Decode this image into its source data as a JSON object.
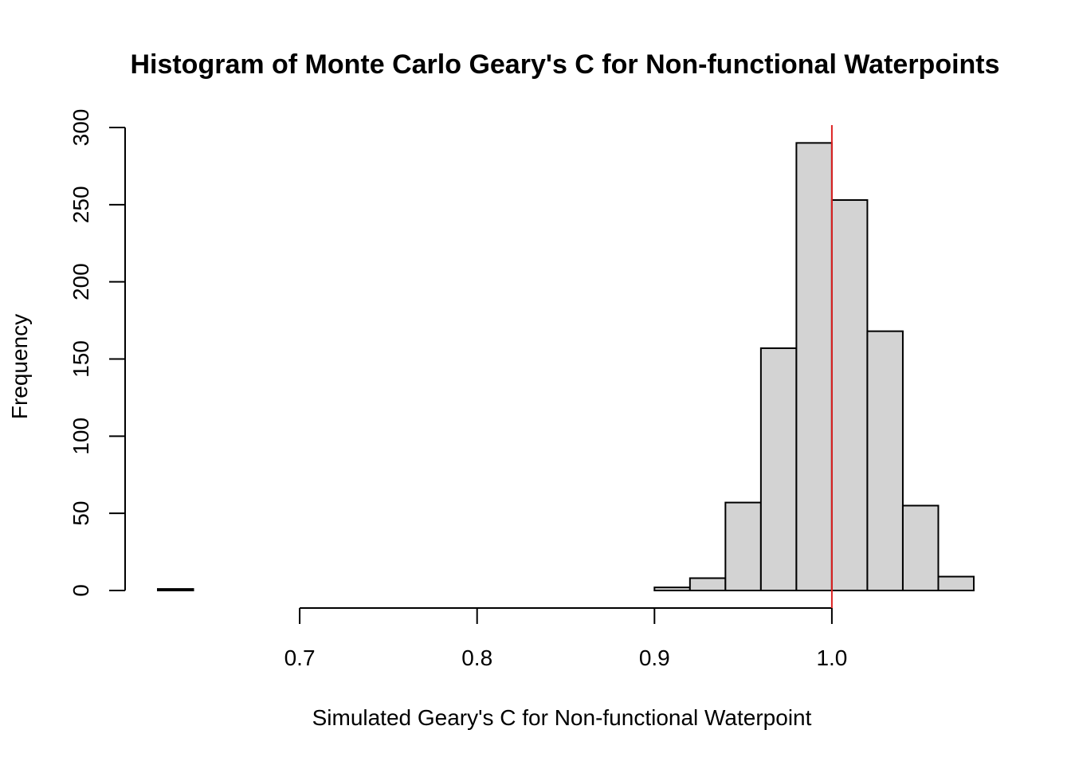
{
  "chart_data": {
    "type": "bar",
    "title": "Histogram of Monte Carlo Geary's C for Non-functional Waterpoints",
    "xlabel": "Simulated Geary's C for Non-functional Waterpoint",
    "ylabel": "Frequency",
    "bins": [
      {
        "from": 0.62,
        "to": 0.64,
        "count": 1
      },
      {
        "from": 0.64,
        "to": 0.66,
        "count": 0
      },
      {
        "from": 0.66,
        "to": 0.68,
        "count": 0
      },
      {
        "from": 0.68,
        "to": 0.7,
        "count": 0
      },
      {
        "from": 0.7,
        "to": 0.72,
        "count": 0
      },
      {
        "from": 0.72,
        "to": 0.74,
        "count": 0
      },
      {
        "from": 0.74,
        "to": 0.76,
        "count": 0
      },
      {
        "from": 0.76,
        "to": 0.78,
        "count": 0
      },
      {
        "from": 0.78,
        "to": 0.8,
        "count": 0
      },
      {
        "from": 0.8,
        "to": 0.82,
        "count": 0
      },
      {
        "from": 0.82,
        "to": 0.84,
        "count": 0
      },
      {
        "from": 0.84,
        "to": 0.86,
        "count": 0
      },
      {
        "from": 0.86,
        "to": 0.88,
        "count": 0
      },
      {
        "from": 0.88,
        "to": 0.9,
        "count": 0
      },
      {
        "from": 0.9,
        "to": 0.92,
        "count": 2
      },
      {
        "from": 0.92,
        "to": 0.94,
        "count": 8
      },
      {
        "from": 0.94,
        "to": 0.96,
        "count": 57
      },
      {
        "from": 0.96,
        "to": 0.98,
        "count": 157
      },
      {
        "from": 0.98,
        "to": 1.0,
        "count": 290
      },
      {
        "from": 1.0,
        "to": 1.02,
        "count": 253
      },
      {
        "from": 1.02,
        "to": 1.04,
        "count": 168
      },
      {
        "from": 1.04,
        "to": 1.06,
        "count": 55
      },
      {
        "from": 1.06,
        "to": 1.08,
        "count": 9
      }
    ],
    "xlim": [
      0.62,
      1.08
    ],
    "ylim": [
      0,
      300
    ],
    "x_ticks": [
      0.7,
      0.8,
      0.9,
      1.0
    ],
    "x_tick_labels": [
      "0.7",
      "0.8",
      "0.9",
      "1.0"
    ],
    "y_ticks": [
      0,
      50,
      100,
      150,
      200,
      250,
      300
    ],
    "y_tick_labels": [
      "0",
      "50",
      "100",
      "150",
      "200",
      "250",
      "300"
    ],
    "reference_line": {
      "x": 1.0,
      "color": "#dd2222"
    },
    "bar_fill": "#d3d3d3",
    "grid": false
  }
}
